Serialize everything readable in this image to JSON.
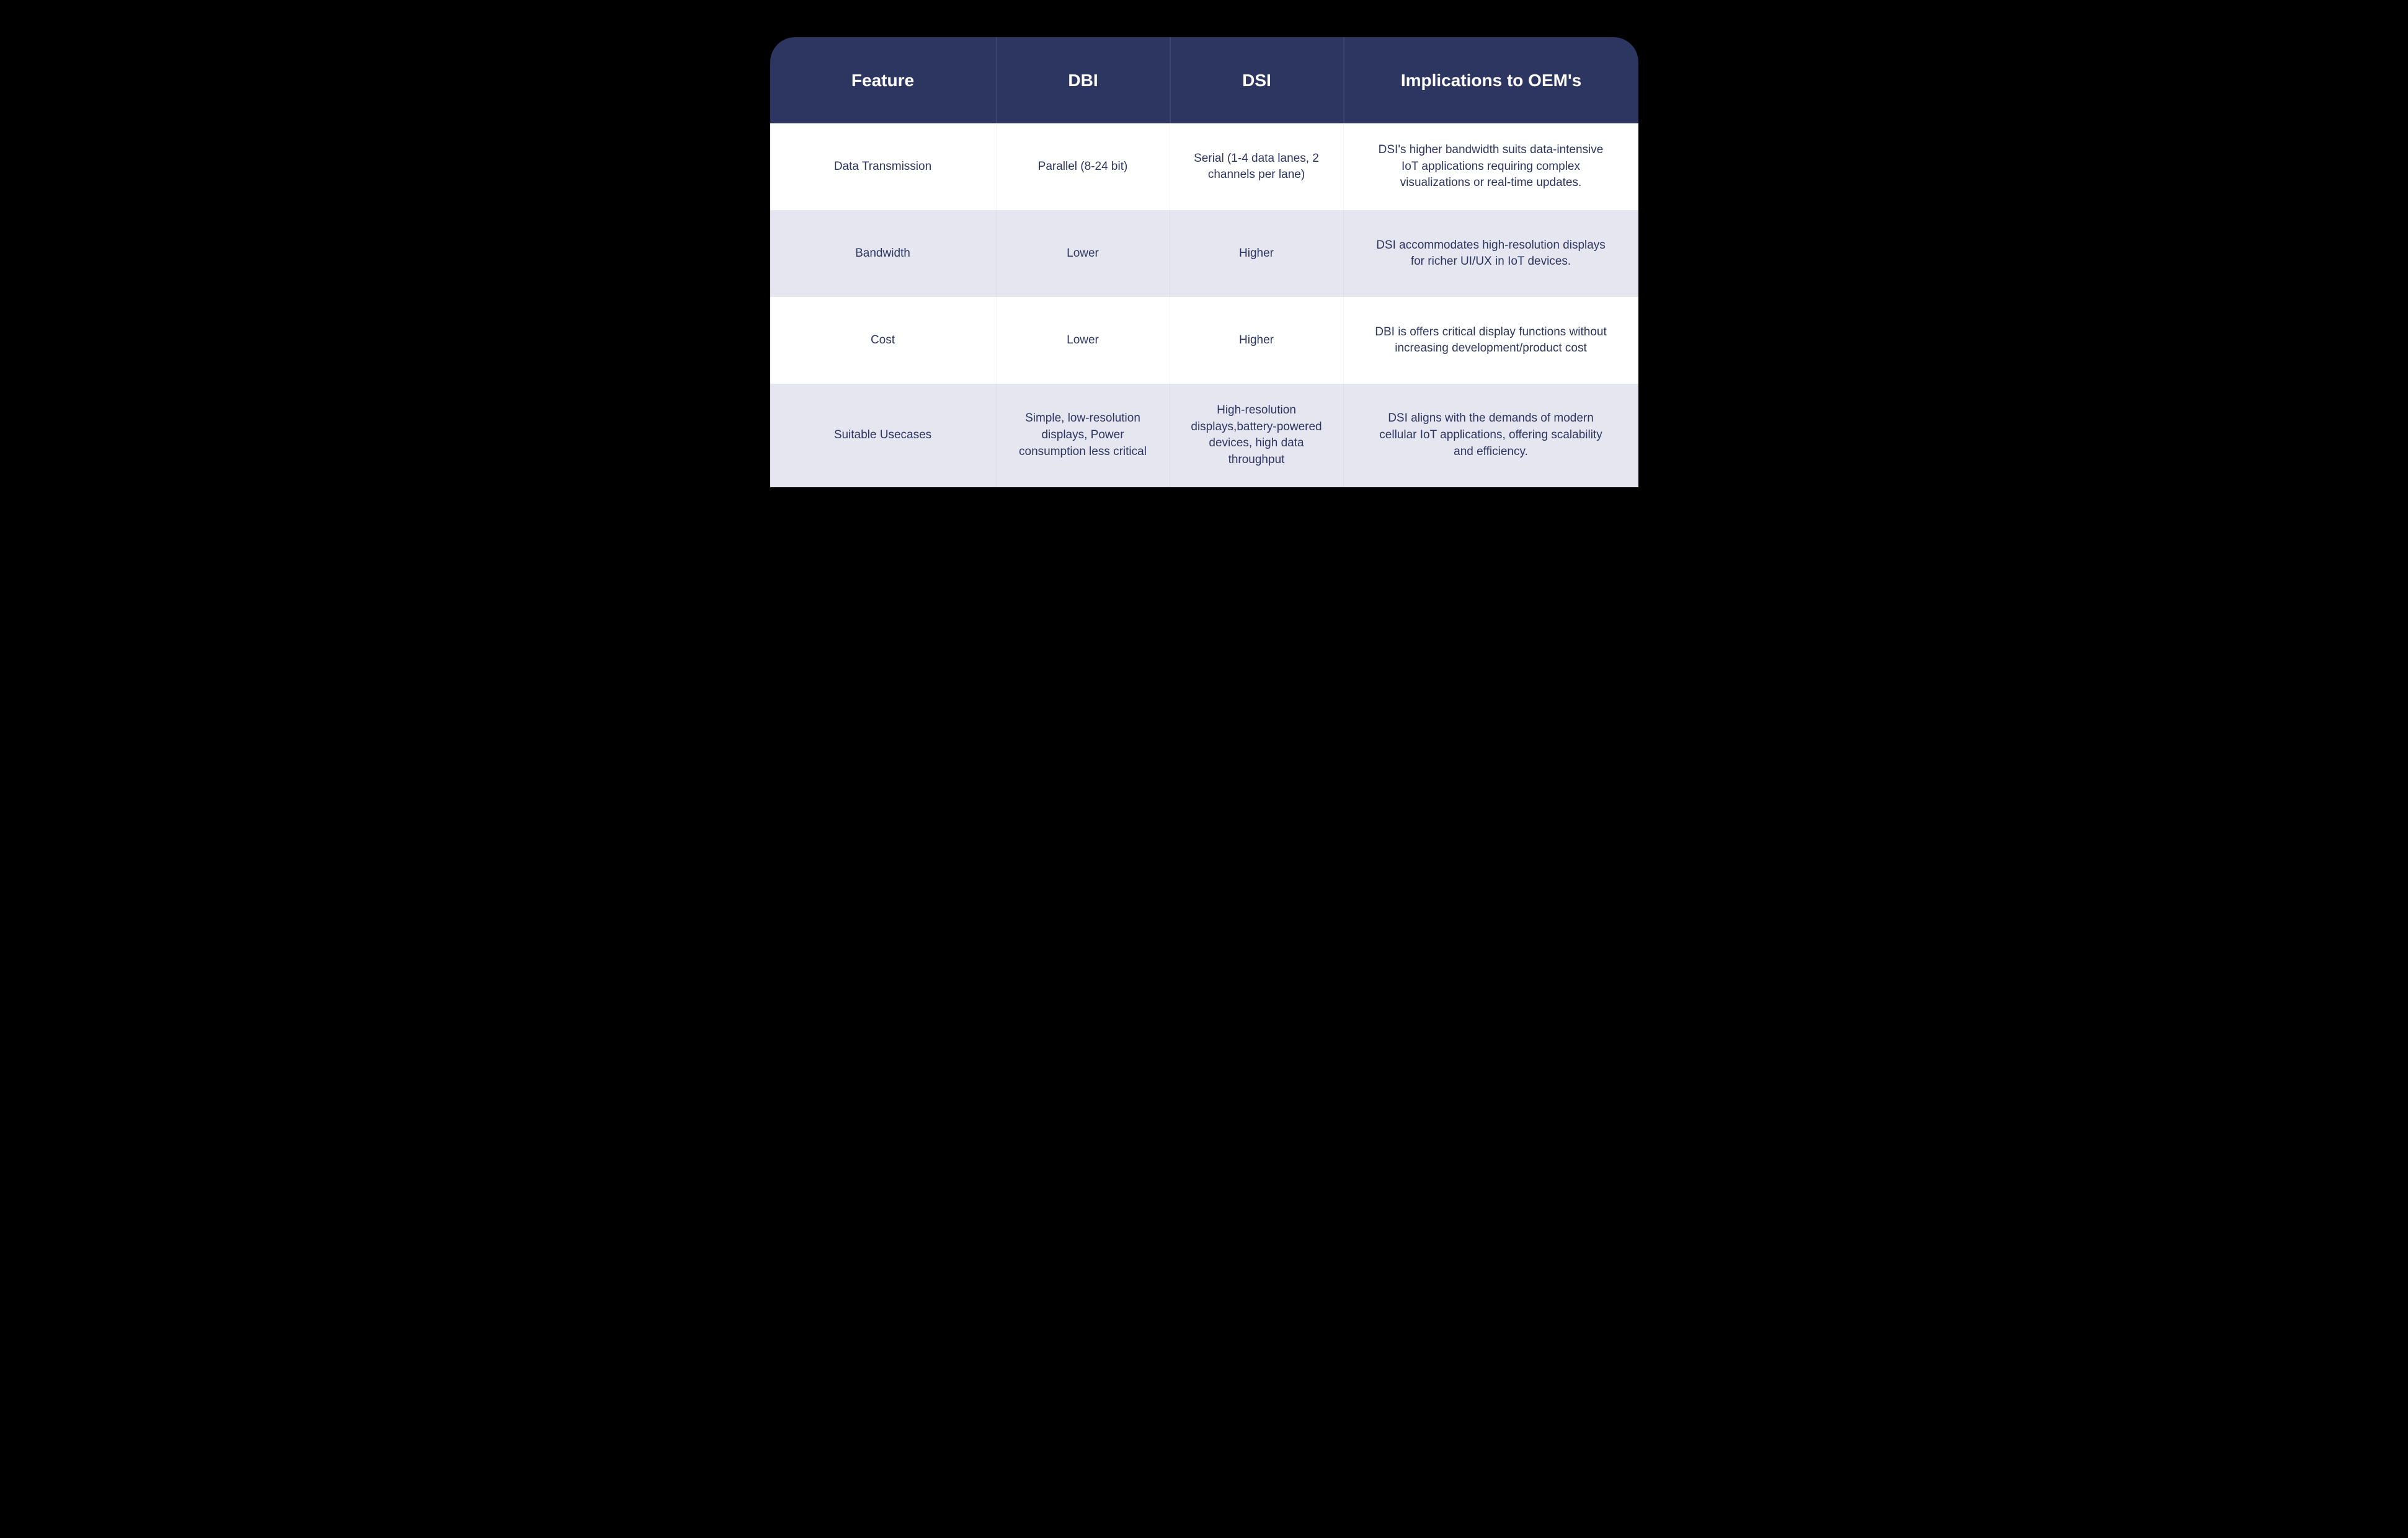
{
  "table": {
    "type": "table",
    "header_background": "#2d3561",
    "header_text_color": "#ffffff",
    "body_text_color": "#2d3561",
    "row_colors": [
      "#ffffff",
      "#e5e6ef"
    ],
    "border_radius_top": 40,
    "header_fontsize": 28,
    "body_fontsize": 19,
    "columns": [
      {
        "key": "feature",
        "label": "Feature",
        "width_pct": 26
      },
      {
        "key": "dbi",
        "label": "DBI",
        "width_pct": 20
      },
      {
        "key": "dsi",
        "label": "DSI",
        "width_pct": 20
      },
      {
        "key": "impl",
        "label": "Implications to OEM's",
        "width_pct": 34
      }
    ],
    "rows": [
      {
        "feature": "Data Transmission",
        "dbi": "Parallel (8-24 bit)",
        "dsi": "Serial (1-4 data lanes, 2 channels per lane)",
        "impl": "DSI's higher bandwidth suits data-intensive IoT applications requiring complex visualizations or real-time updates."
      },
      {
        "feature": "Bandwidth",
        "dbi": "Lower",
        "dsi": "Higher",
        "impl": "DSI accommodates high-resolution displays for richer UI/UX in IoT devices."
      },
      {
        "feature": "Cost",
        "dbi": "Lower",
        "dsi": "Higher",
        "impl": "DBI is offers critical display functions without increasing development/product cost"
      },
      {
        "feature": "Suitable Usecases",
        "dbi": "Simple, low-resolution displays, Power consumption less critical",
        "dsi": "High-resolution displays,battery-powered devices, high data throughput",
        "impl": "DSI aligns with the demands of modern cellular IoT applications, offering scalability and efficiency."
      }
    ]
  }
}
